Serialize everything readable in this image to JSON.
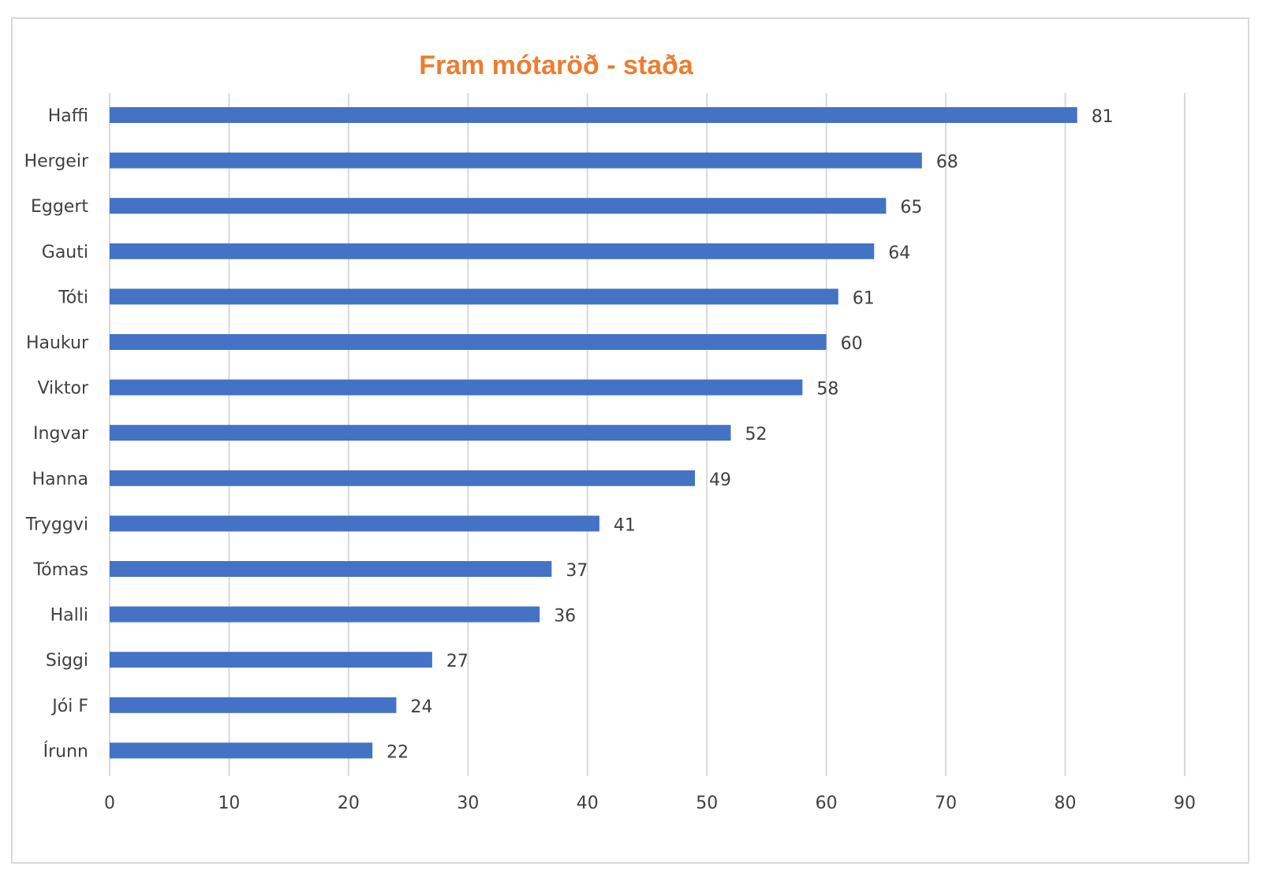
{
  "chart_data": {
    "type": "bar",
    "orientation": "horizontal",
    "title": "Fram mótaröð - staða",
    "categories": [
      "Haffi",
      "Hergeir",
      "Eggert",
      "Gauti",
      "Tóti",
      "Haukur",
      "Viktor",
      "Ingvar",
      "Hanna",
      "Tryggvi",
      "Tómas",
      "Halli",
      "Siggi",
      "Jói F",
      "Írunn"
    ],
    "values": [
      81,
      68,
      65,
      64,
      61,
      60,
      58,
      52,
      49,
      41,
      37,
      36,
      27,
      24,
      22
    ],
    "xlabel": "",
    "ylabel": "",
    "xlim": [
      0,
      90
    ],
    "xticks": [
      "0",
      "10",
      "20",
      "30",
      "40",
      "50",
      "60",
      "70",
      "80",
      "90"
    ],
    "grid": true,
    "legend": "none",
    "data_labels": true
  },
  "colors": {
    "bar": "#4472c4",
    "title": "#ed7d31",
    "grid": "#d9d9d9",
    "text": "#404040"
  }
}
